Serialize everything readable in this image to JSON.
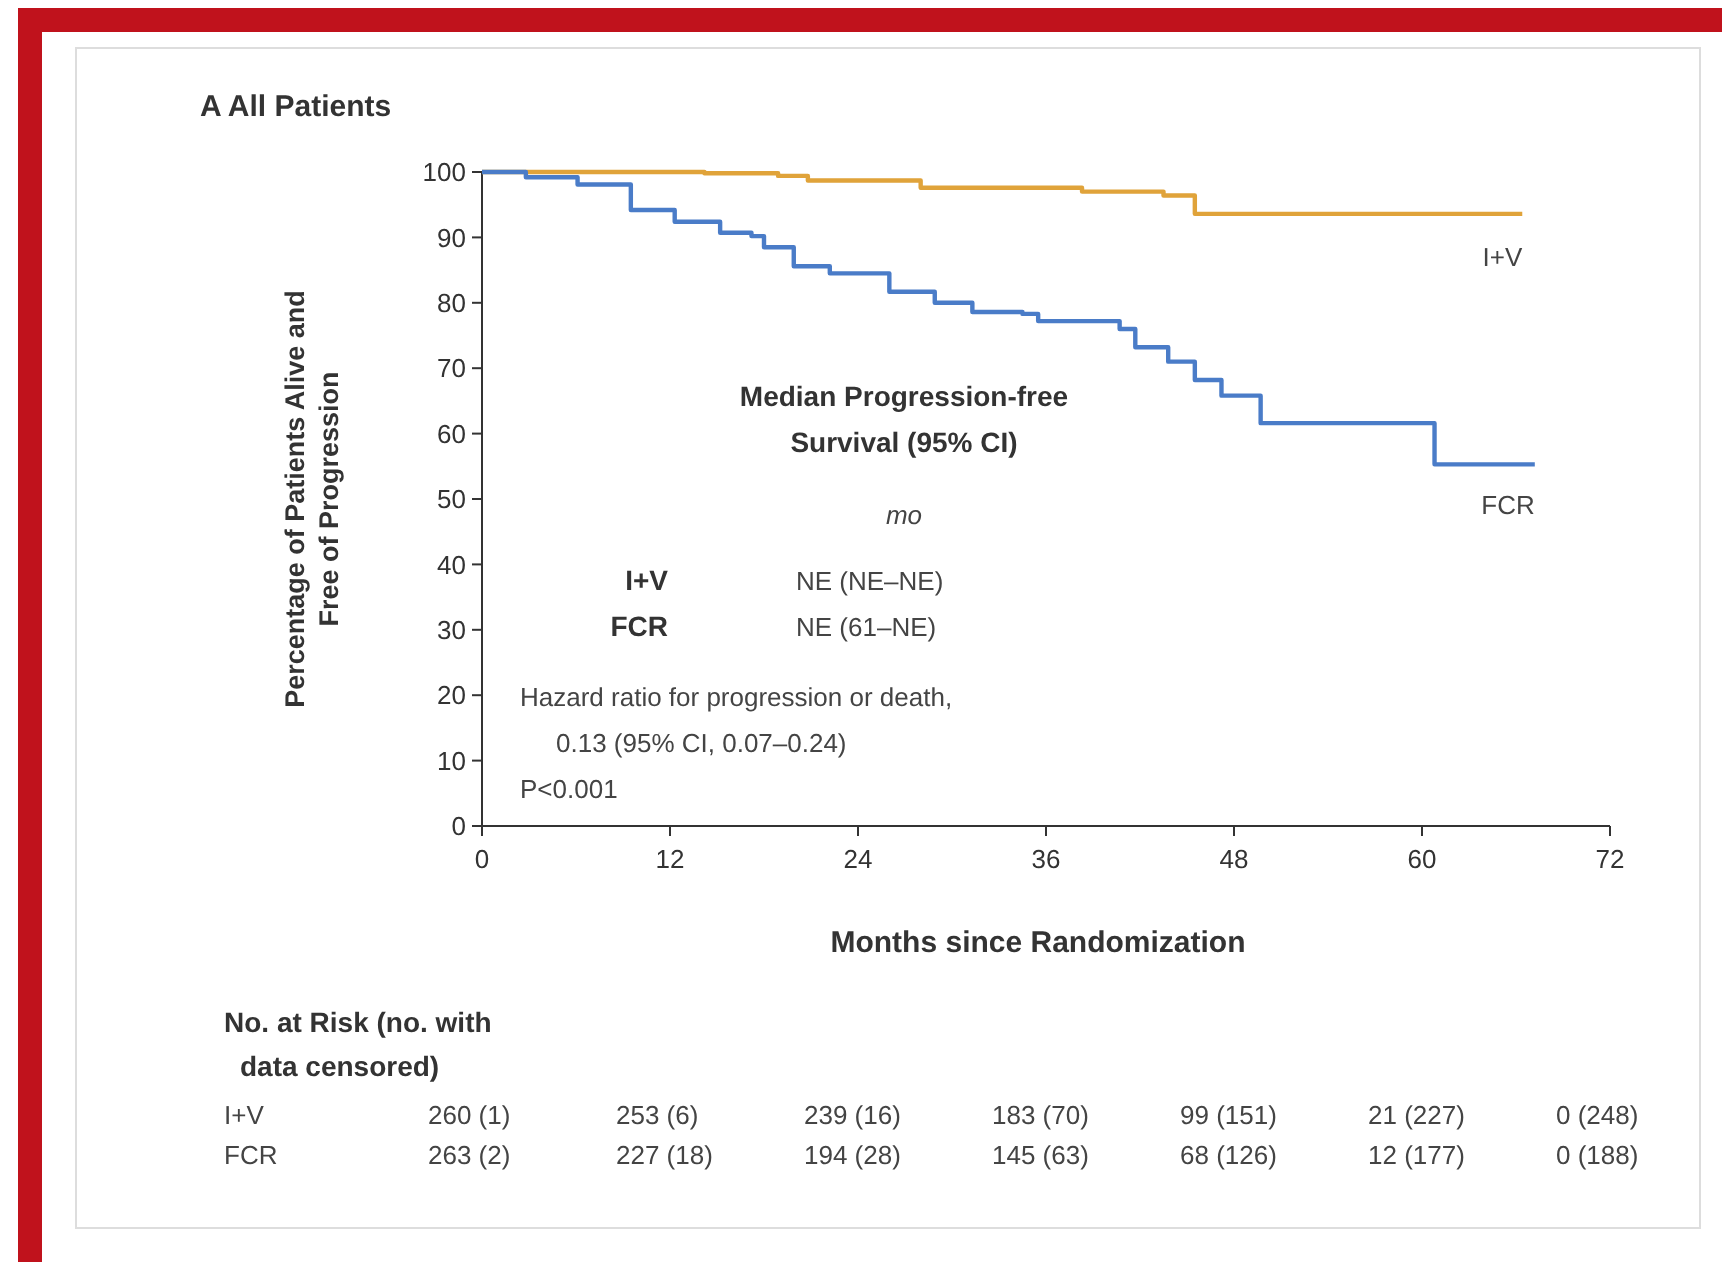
{
  "chart_data": {
    "type": "step",
    "title": "A All Patients",
    "xlabel": "Months since Randomization",
    "ylabel": "Percentage of Patients Alive and Free of Progression",
    "xlim": [
      0,
      72
    ],
    "xticks": [
      0,
      12,
      24,
      36,
      48,
      60,
      72
    ],
    "ylim": [
      0,
      100
    ],
    "yticks": [
      0,
      10,
      20,
      30,
      40,
      50,
      60,
      70,
      80,
      90,
      100
    ],
    "grid": false,
    "series": [
      {
        "name": "I+V",
        "color": "#e0a33a",
        "x": [
          0,
          14.2,
          18.9,
          20.8,
          28,
          38.3,
          43.5,
          45.5,
          66.4
        ],
        "values": [
          100,
          99.8,
          99.4,
          98.7,
          97.6,
          97,
          96.4,
          93.6,
          93.6
        ]
      },
      {
        "name": "FCR",
        "color": "#4a7cc8",
        "x": [
          0,
          2.8,
          6.1,
          9.5,
          12.3,
          15.2,
          17.2,
          18,
          19.9,
          22.2,
          26,
          28.9,
          31.3,
          34.5,
          35.5,
          40.7,
          41.7,
          43.8,
          45.5,
          47.2,
          49.7,
          60.8,
          67.2
        ],
        "values": [
          100,
          99.2,
          98.1,
          94.2,
          92.4,
          90.7,
          90.2,
          88.5,
          85.6,
          84.5,
          81.7,
          80,
          78.6,
          78.3,
          77.2,
          76,
          73.2,
          71,
          68.2,
          65.8,
          61.6,
          55.3,
          55.3
        ]
      }
    ],
    "annotations": [
      "Median Progression-free",
      "Survival (95% CI)",
      "mo",
      "I+V",
      "NE (NE–NE)",
      "FCR",
      "NE (61–NE)",
      "Hazard ratio for progression or death,",
      "0.13 (95% CI, 0.07–0.24)",
      "P<0.001",
      "No. at Risk (no. with",
      "data censored)",
      "I+V",
      "260 (1)",
      "253 (6)",
      "239 (16)",
      "183 (70)",
      "99 (151)",
      "21 (227)",
      "0 (248)",
      "FCR",
      "263 (2)",
      "227 (18)",
      "194 (28)",
      "145 (63)",
      "68 (126)",
      "12 (177)",
      "0 (188)"
    ]
  }
}
